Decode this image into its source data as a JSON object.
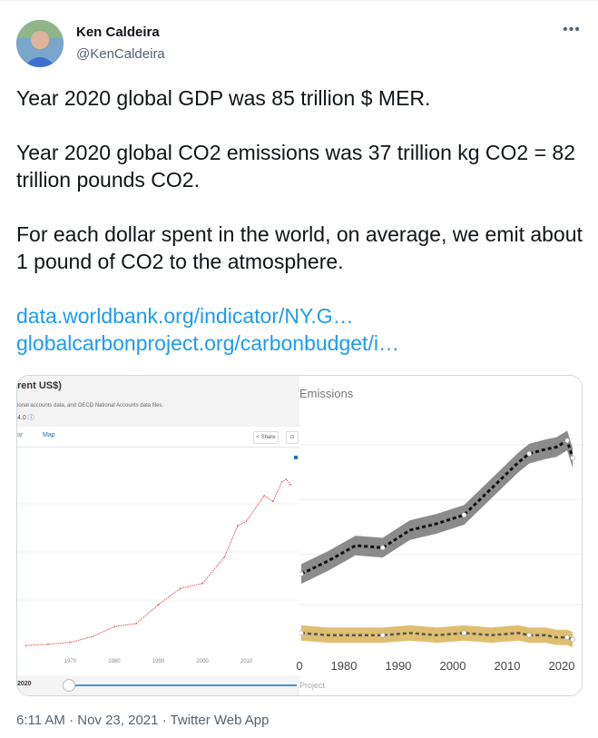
{
  "tweet": {
    "author_name": "Ken Caldeira",
    "author_handle": "@KenCaldeira",
    "more_label": "•••",
    "paragraphs": [
      "Year 2020 global GDP was 85 trillion $ MER.",
      "Year 2020 global CO2 emissions was 37 trillion kg CO2 = 82 trillion pounds CO2.",
      "For each dollar spent in the world, on average, we emit about 1 pound of CO2 to the atmosphere."
    ],
    "links": [
      "data.worldbank.org/indicator/NY.G…",
      "globalcarbonproject.org/carbonbudget/i…"
    ],
    "timestamp": "6:11 AM · Nov 23, 2021",
    "separator": " · ",
    "source": "Twitter Web App"
  },
  "media": {
    "left_panel": {
      "title": "rent US$)",
      "subtitle": "ional accounts data, and OECD National Accounts data files.",
      "license": "4.0",
      "tab_1": "ar",
      "tab_2": "Map",
      "share_label": "Share",
      "year_label": "2020",
      "x_ticks": [
        "1970",
        "1980",
        "1990",
        "2000",
        "2010"
      ]
    },
    "right_panel": {
      "title": "Emissions",
      "source_label": "Project",
      "x_ticks": [
        "0",
        "1980",
        "1990",
        "2000",
        "2010",
        "2020"
      ],
      "band_colors": {
        "fossil": "#777777",
        "land": "#d4a843"
      }
    }
  },
  "chart_data": [
    {
      "type": "line",
      "title": "rent US$)",
      "x": [
        1960,
        1965,
        1970,
        1975,
        1980,
        1985,
        1990,
        1995,
        2000,
        2005,
        2008,
        2010,
        2014,
        2016,
        2018,
        2019,
        2020
      ],
      "series": [
        {
          "values": [
            1.4,
            2.0,
            3.0,
            5.9,
            11.2,
            12.8,
            22.6,
            31.0,
            33.6,
            47.4,
            63.6,
            66.0,
            79.3,
            76.2,
            86.4,
            87.7,
            84.9
          ]
        }
      ],
      "color": "#e05555",
      "xticks": [
        "1970",
        "1980",
        "1990",
        "2000",
        "2010"
      ]
    },
    {
      "type": "line",
      "title": "Emissions",
      "x": [
        1970,
        1975,
        1980,
        1985,
        1990,
        1995,
        2000,
        2005,
        2010,
        2012,
        2015,
        2017,
        2019,
        2020
      ],
      "series": [
        {
          "values": [
            4.1,
            4.7,
            5.4,
            5.3,
            6.1,
            6.4,
            6.8,
            8.0,
            9.2,
            9.6,
            9.8,
            9.9,
            10.2,
            9.4
          ]
        },
        {
          "values": [
            1.4,
            1.3,
            1.3,
            1.3,
            1.4,
            1.3,
            1.4,
            1.3,
            1.4,
            1.3,
            1.3,
            1.2,
            1.2,
            1.1
          ]
        }
      ],
      "xticks": [
        "0",
        "1980",
        "1990",
        "2000",
        "2010",
        "2020"
      ]
    }
  ]
}
